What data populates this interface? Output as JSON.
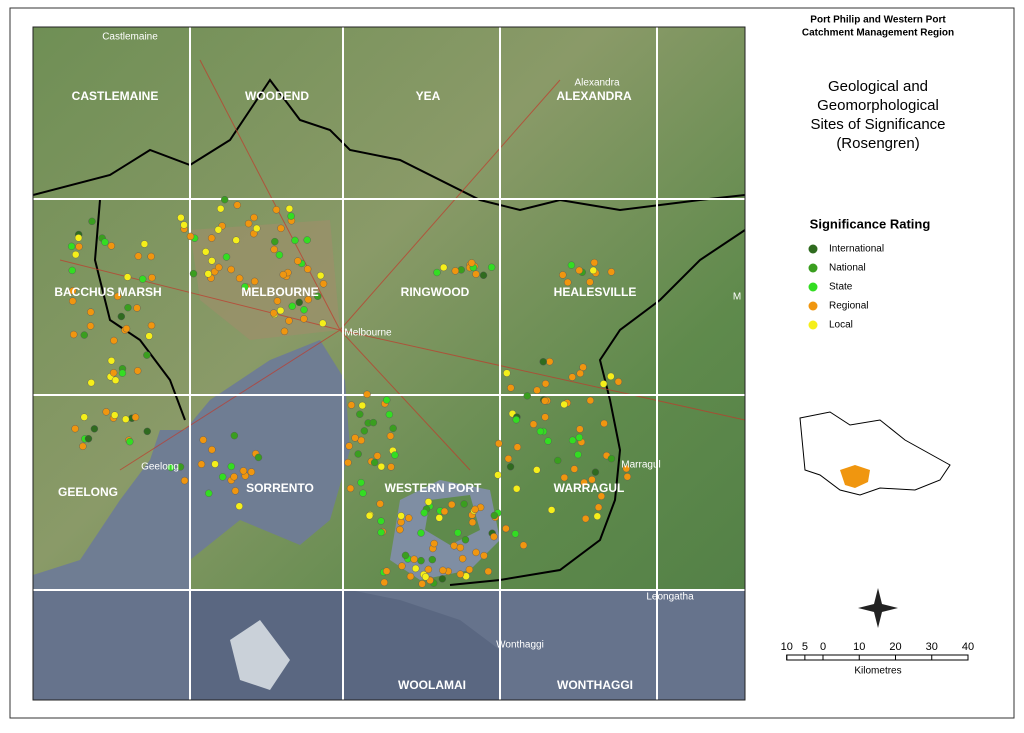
{
  "header": {
    "region_lines": [
      "Port Philip and Western Port",
      "Catchment Management Region"
    ],
    "title_lines": [
      "Geological and",
      "Geomorphological",
      "Sites of Significance",
      "(Rosengren)"
    ]
  },
  "legend": {
    "title": "Significance Rating",
    "items": [
      {
        "label": "International",
        "color": "#2f6b1f"
      },
      {
        "label": "National",
        "color": "#3a9e1f"
      },
      {
        "label": "State",
        "color": "#33dd22"
      },
      {
        "label": "Regional",
        "color": "#f0960f"
      },
      {
        "label": "Local",
        "color": "#f5ef1a"
      }
    ]
  },
  "map_sheets": [
    "CASTLEMAINE",
    "WOODEND",
    "YEA",
    "ALEXANDRA",
    "BACCHUS MARSH",
    "MELBOURNE",
    "RINGWOOD",
    "HEALESVILLE",
    "GEELONG",
    "SORRENTO",
    "WESTERN PORT",
    "WARRAGUL",
    "WOOLAMAI",
    "WONTHAGGI"
  ],
  "towns": [
    "Castlemaine",
    "Alexandra",
    "Melbourne",
    "Geelong",
    "Marragul",
    "Leongatha",
    "Wonthaggi",
    "M"
  ],
  "scale": {
    "left": [
      10,
      5
    ],
    "right": [
      0,
      10,
      20,
      30,
      40
    ],
    "unit": "Kilometres"
  }
}
